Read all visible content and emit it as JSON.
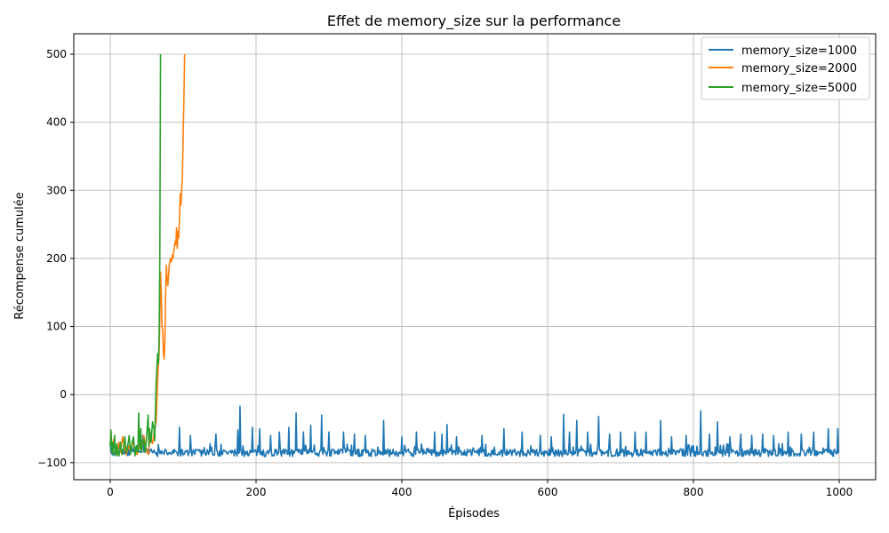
{
  "chart_data": {
    "type": "line",
    "title": "Effet de memory_size sur la performance",
    "xlabel": "Épisodes",
    "ylabel": "Récompense cumulée",
    "xlim": [
      -50,
      1050
    ],
    "ylim": [
      -125,
      530
    ],
    "xticks": [
      0,
      200,
      400,
      600,
      800,
      1000
    ],
    "yticks": [
      -100,
      0,
      100,
      200,
      300,
      400,
      500
    ],
    "grid": true,
    "legend_position": "top-right",
    "series": [
      {
        "name": "memory_size=1000",
        "color": "#1f77b4",
        "x": [
          0,
          999
        ],
        "baseline": -83,
        "noise_low": -91,
        "noise_high": -72,
        "spikes": [
          [
            45,
            -60
          ],
          [
            95,
            -48
          ],
          [
            110,
            -60
          ],
          [
            145,
            -58
          ],
          [
            175,
            -52
          ],
          [
            178,
            -17
          ],
          [
            195,
            -48
          ],
          [
            205,
            -50
          ],
          [
            220,
            -60
          ],
          [
            232,
            -55
          ],
          [
            245,
            -48
          ],
          [
            255,
            -27
          ],
          [
            265,
            -55
          ],
          [
            275,
            -45
          ],
          [
            290,
            -30
          ],
          [
            300,
            -55
          ],
          [
            320,
            -55
          ],
          [
            335,
            -58
          ],
          [
            350,
            -60
          ],
          [
            375,
            -38
          ],
          [
            400,
            -62
          ],
          [
            420,
            -55
          ],
          [
            445,
            -55
          ],
          [
            455,
            -58
          ],
          [
            462,
            -44
          ],
          [
            475,
            -62
          ],
          [
            510,
            -60
          ],
          [
            540,
            -50
          ],
          [
            565,
            -55
          ],
          [
            590,
            -60
          ],
          [
            605,
            -62
          ],
          [
            622,
            -29
          ],
          [
            630,
            -55
          ],
          [
            640,
            -38
          ],
          [
            655,
            -55
          ],
          [
            670,
            -32
          ],
          [
            685,
            -58
          ],
          [
            700,
            -55
          ],
          [
            720,
            -55
          ],
          [
            735,
            -55
          ],
          [
            755,
            -38
          ],
          [
            770,
            -62
          ],
          [
            790,
            -60
          ],
          [
            810,
            -24
          ],
          [
            822,
            -58
          ],
          [
            833,
            -40
          ],
          [
            850,
            -62
          ],
          [
            865,
            -58
          ],
          [
            880,
            -60
          ],
          [
            895,
            -58
          ],
          [
            910,
            -60
          ],
          [
            930,
            -55
          ],
          [
            948,
            -58
          ],
          [
            965,
            -55
          ],
          [
            985,
            -50
          ],
          [
            998,
            -50
          ]
        ]
      },
      {
        "name": "memory_size=2000",
        "color": "#ff7f0e",
        "x": [
          0,
          1,
          3,
          5,
          7,
          9,
          12,
          14,
          17,
          20,
          22,
          25,
          28,
          31,
          34,
          37,
          40,
          43,
          46,
          49,
          52,
          55,
          58,
          61,
          63,
          65,
          67,
          68,
          69,
          70,
          71,
          72,
          73,
          74,
          75,
          76,
          77,
          78,
          79,
          80,
          81,
          82,
          83,
          84,
          85,
          86,
          87,
          88,
          89,
          90,
          91,
          92,
          93,
          94,
          95,
          96,
          97,
          98,
          99,
          100,
          101,
          102
        ],
        "y": [
          -75,
          -55,
          -85,
          -65,
          -80,
          -88,
          -70,
          -85,
          -62,
          -80,
          -88,
          -75,
          -85,
          -68,
          -82,
          -88,
          -72,
          -84,
          -60,
          -80,
          -88,
          -62,
          -72,
          -50,
          -40,
          20,
          60,
          110,
          180,
          150,
          100,
          95,
          60,
          52,
          80,
          150,
          190,
          170,
          160,
          175,
          190,
          198,
          200,
          195,
          205,
          200,
          210,
          215,
          225,
          220,
          245,
          215,
          240,
          230,
          260,
          295,
          278,
          300,
          320,
          380,
          430,
          500
        ]
      },
      {
        "name": "memory_size=5000",
        "color": "#2ca02c",
        "x": [
          0,
          1,
          2,
          3,
          4,
          5,
          6,
          7,
          8,
          9,
          10,
          12,
          14,
          16,
          18,
          20,
          22,
          24,
          26,
          28,
          30,
          32,
          34,
          36,
          38,
          39,
          40,
          41,
          42,
          43,
          44,
          46,
          48,
          50,
          52,
          53,
          54,
          56,
          58,
          60,
          61,
          62,
          63,
          64,
          65,
          66,
          67,
          68,
          69
        ],
        "y": [
          -75,
          -52,
          -85,
          -70,
          -88,
          -75,
          -60,
          -85,
          -90,
          -72,
          -85,
          -90,
          -70,
          -88,
          -80,
          -62,
          -85,
          -75,
          -60,
          -88,
          -70,
          -62,
          -90,
          -75,
          -85,
          -27,
          -65,
          -80,
          -50,
          -85,
          -70,
          -65,
          -85,
          -60,
          -30,
          -75,
          -50,
          -70,
          -40,
          -50,
          -68,
          -25,
          20,
          40,
          60,
          45,
          80,
          200,
          500
        ]
      }
    ]
  }
}
